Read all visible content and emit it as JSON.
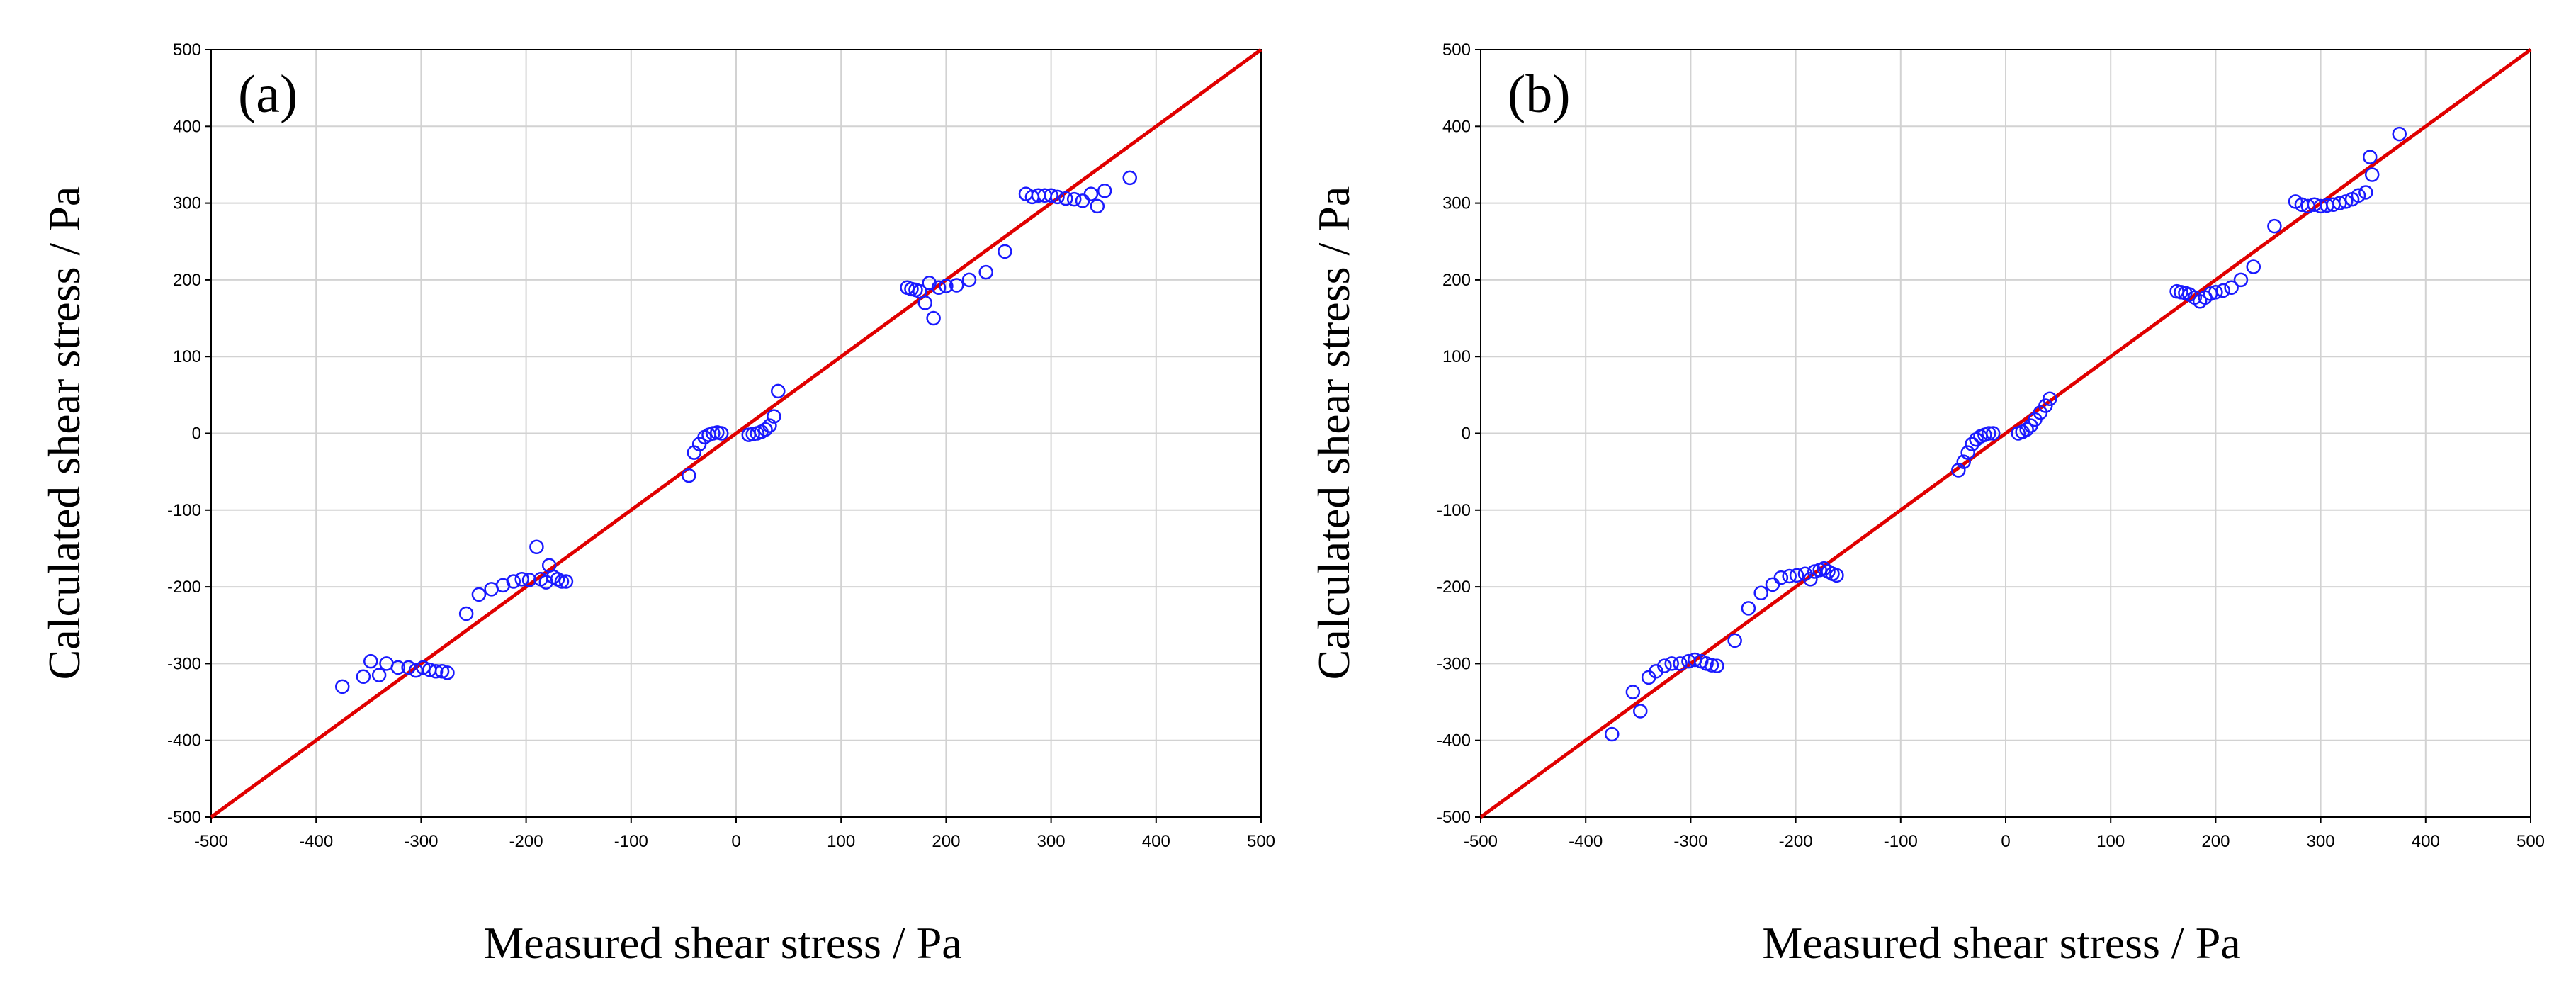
{
  "chart_data": [
    {
      "type": "scatter",
      "panel_label": "(a)",
      "title": "",
      "xlabel": "Measured shear stress / Pa",
      "ylabel": "Calculated shear stress / Pa",
      "xlim": [
        -500,
        500
      ],
      "ylim": [
        -500,
        500
      ],
      "xticks": [
        -500,
        -400,
        -300,
        -200,
        -100,
        0,
        100,
        200,
        300,
        400,
        500
      ],
      "yticks": [
        -500,
        -400,
        -300,
        -200,
        -100,
        0,
        100,
        200,
        300,
        400,
        500
      ],
      "xtick_labels": [
        "-500",
        "-400",
        "-300",
        "-200",
        "-100",
        "0",
        "100",
        "200",
        "300",
        "400",
        "500"
      ],
      "ytick_labels": [
        "-500",
        "-400",
        "-300",
        "-200",
        "-100",
        "0",
        "100",
        "200",
        "300",
        "400",
        "500"
      ],
      "grid": true,
      "series": [
        {
          "name": "data",
          "marker": "open-circle",
          "color": "#1a1aff",
          "points": [
            [
              -375,
              -330
            ],
            [
              -355,
              -317
            ],
            [
              -348,
              -297
            ],
            [
              -340,
              -315
            ],
            [
              -333,
              -300
            ],
            [
              -322,
              -305
            ],
            [
              -312,
              -305
            ],
            [
              -305,
              -309
            ],
            [
              -298,
              -305
            ],
            [
              -292,
              -308
            ],
            [
              -286,
              -310
            ],
            [
              -280,
              -310
            ],
            [
              -275,
              -312
            ],
            [
              -257,
              -235
            ],
            [
              -245,
              -210
            ],
            [
              -233,
              -203
            ],
            [
              -222,
              -198
            ],
            [
              -212,
              -193
            ],
            [
              -204,
              -190
            ],
            [
              -197,
              -191
            ],
            [
              -190,
              -148
            ],
            [
              -186,
              -190
            ],
            [
              -181,
              -194
            ],
            [
              -178,
              -172
            ],
            [
              -174,
              -187
            ],
            [
              -170,
              -190
            ],
            [
              -166,
              -193
            ],
            [
              -162,
              -193
            ],
            [
              -45,
              -55
            ],
            [
              -40,
              -25
            ],
            [
              -35,
              -14
            ],
            [
              -30,
              -5
            ],
            [
              -26,
              -2
            ],
            [
              -22,
              0
            ],
            [
              -18,
              1
            ],
            [
              -14,
              0
            ],
            [
              12,
              -2
            ],
            [
              16,
              -1
            ],
            [
              20,
              0
            ],
            [
              24,
              2
            ],
            [
              28,
              5
            ],
            [
              32,
              10
            ],
            [
              36,
              22
            ],
            [
              40,
              55
            ],
            [
              163,
              190
            ],
            [
              167,
              188
            ],
            [
              171,
              187
            ],
            [
              175,
              185
            ],
            [
              180,
              170
            ],
            [
              184,
              196
            ],
            [
              188,
              150
            ],
            [
              193,
              190
            ],
            [
              200,
              192
            ],
            [
              210,
              193
            ],
            [
              222,
              200
            ],
            [
              238,
              210
            ],
            [
              256,
              237
            ],
            [
              276,
              312
            ],
            [
              282,
              308
            ],
            [
              288,
              310
            ],
            [
              294,
              310
            ],
            [
              300,
              310
            ],
            [
              306,
              308
            ],
            [
              314,
              306
            ],
            [
              322,
              305
            ],
            [
              330,
              303
            ],
            [
              338,
              312
            ],
            [
              344,
              296
            ],
            [
              351,
              316
            ],
            [
              375,
              333
            ]
          ]
        },
        {
          "name": "y = x",
          "color": "#e00000",
          "line": [
            [
              -500,
              -500
            ],
            [
              500,
              500
            ]
          ]
        }
      ]
    },
    {
      "type": "scatter",
      "panel_label": "(b)",
      "title": "",
      "xlabel": "Measured shear stress / Pa",
      "ylabel": "Calculated shear stress / Pa",
      "xlim": [
        -500,
        500
      ],
      "ylim": [
        -500,
        500
      ],
      "xticks": [
        -500,
        -400,
        -300,
        -200,
        -100,
        0,
        100,
        200,
        300,
        400,
        500
      ],
      "yticks": [
        -500,
        -400,
        -300,
        -200,
        -100,
        0,
        100,
        200,
        300,
        400,
        500
      ],
      "xtick_labels": [
        "-500",
        "-400",
        "-300",
        "-200",
        "-100",
        "0",
        "100",
        "200",
        "300",
        "400",
        "500"
      ],
      "ytick_labels": [
        "-500",
        "-400",
        "-300",
        "-200",
        "-100",
        "0",
        "100",
        "200",
        "300",
        "400",
        "500"
      ],
      "grid": true,
      "series": [
        {
          "name": "data",
          "marker": "open-circle",
          "color": "#1a1aff",
          "points": [
            [
              -375,
              -392
            ],
            [
              -355,
              -337
            ],
            [
              -348,
              -362
            ],
            [
              -340,
              -318
            ],
            [
              -333,
              -310
            ],
            [
              -325,
              -303
            ],
            [
              -318,
              -300
            ],
            [
              -310,
              -300
            ],
            [
              -302,
              -297
            ],
            [
              -296,
              -295
            ],
            [
              -290,
              -297
            ],
            [
              -285,
              -300
            ],
            [
              -280,
              -302
            ],
            [
              -275,
              -303
            ],
            [
              -258,
              -270
            ],
            [
              -245,
              -228
            ],
            [
              -233,
              -208
            ],
            [
              -222,
              -197
            ],
            [
              -214,
              -188
            ],
            [
              -206,
              -186
            ],
            [
              -199,
              -185
            ],
            [
              -191,
              -183
            ],
            [
              -186,
              -190
            ],
            [
              -182,
              -180
            ],
            [
              -177,
              -178
            ],
            [
              -173,
              -176
            ],
            [
              -169,
              -180
            ],
            [
              -165,
              -183
            ],
            [
              -161,
              -185
            ],
            [
              -45,
              -48
            ],
            [
              -40,
              -37
            ],
            [
              -36,
              -25
            ],
            [
              -32,
              -14
            ],
            [
              -28,
              -8
            ],
            [
              -24,
              -4
            ],
            [
              -20,
              -2
            ],
            [
              -16,
              0
            ],
            [
              -12,
              0
            ],
            [
              12,
              0
            ],
            [
              16,
              2
            ],
            [
              20,
              5
            ],
            [
              24,
              10
            ],
            [
              28,
              18
            ],
            [
              33,
              27
            ],
            [
              38,
              36
            ],
            [
              42,
              45
            ],
            [
              163,
              185
            ],
            [
              167,
              184
            ],
            [
              171,
              183
            ],
            [
              175,
              181
            ],
            [
              180,
              177
            ],
            [
              185,
              172
            ],
            [
              190,
              177
            ],
            [
              195,
              182
            ],
            [
              200,
              184
            ],
            [
              207,
              186
            ],
            [
              215,
              190
            ],
            [
              224,
              200
            ],
            [
              236,
              217
            ],
            [
              256,
              270
            ],
            [
              276,
              302
            ],
            [
              282,
              298
            ],
            [
              288,
              296
            ],
            [
              294,
              298
            ],
            [
              300,
              296
            ],
            [
              306,
              297
            ],
            [
              312,
              298
            ],
            [
              318,
              300
            ],
            [
              324,
              302
            ],
            [
              330,
              305
            ],
            [
              336,
              310
            ],
            [
              343,
              314
            ],
            [
              349,
              337
            ],
            [
              347,
              360
            ],
            [
              375,
              390
            ]
          ]
        },
        {
          "name": "y = x",
          "color": "#e00000",
          "line": [
            [
              -500,
              -500
            ],
            [
              500,
              500
            ]
          ]
        }
      ]
    }
  ]
}
